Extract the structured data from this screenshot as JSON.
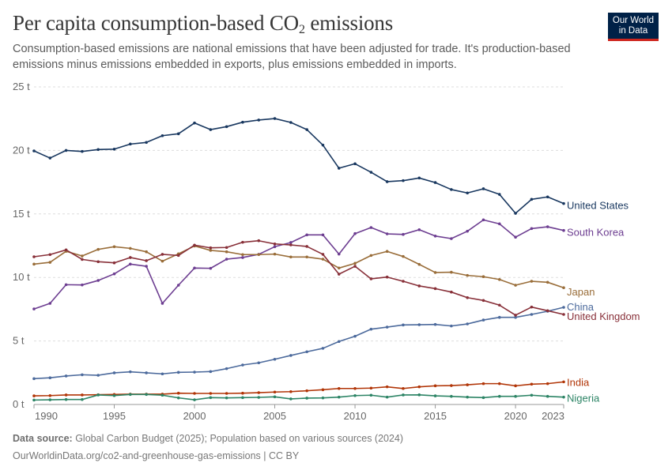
{
  "header": {
    "title": "Per capita consumption-based CO",
    "title_sub": "2",
    "title_end": " emissions",
    "subtitle": "Consumption-based emissions are national emissions that have been adjusted for trade. It's production-based emissions minus emissions embedded in exports, plus emissions embedded in imports.",
    "logo_line1": "Our World",
    "logo_line2": "in Data"
  },
  "footer": {
    "source_label": "Data source:",
    "source_text": " Global Carbon Budget (2025); Population based on various sources (2024)",
    "url_text": "OurWorldinData.org/co2-and-greenhouse-gas-emissions | CC BY"
  },
  "chart_data": {
    "type": "line",
    "title": "Per capita consumption-based CO2 emissions",
    "x": [
      1990,
      1991,
      1992,
      1993,
      1994,
      1995,
      1996,
      1997,
      1998,
      1999,
      2000,
      2001,
      2002,
      2003,
      2004,
      2005,
      2006,
      2007,
      2008,
      2009,
      2010,
      2011,
      2012,
      2013,
      2014,
      2015,
      2016,
      2017,
      2018,
      2019,
      2020,
      2021,
      2022,
      2023
    ],
    "xlim": [
      1990,
      2023
    ],
    "ylim": [
      0,
      25
    ],
    "x_ticks": [
      "1990",
      "1995",
      "2000",
      "2005",
      "2010",
      "2015",
      "2020",
      "2023"
    ],
    "x_tick_values": [
      1990,
      1995,
      2000,
      2005,
      2010,
      2015,
      2020,
      2023
    ],
    "y_ticks": [
      "0 t",
      "5 t",
      "10 t",
      "15 t",
      "20 t",
      "25 t"
    ],
    "y_tick_values": [
      0,
      5,
      10,
      15,
      20,
      25
    ],
    "grid": "horizontal dashed",
    "legend": "end-of-line labels on right",
    "series": [
      {
        "name": "United States",
        "color": "#18375f",
        "values": [
          19.96,
          19.4,
          20.0,
          19.92,
          20.07,
          20.1,
          20.5,
          20.63,
          21.16,
          21.31,
          22.16,
          21.64,
          21.87,
          22.22,
          22.39,
          22.51,
          22.2,
          21.64,
          20.42,
          18.6,
          18.95,
          18.28,
          17.54,
          17.62,
          17.83,
          17.47,
          16.92,
          16.65,
          16.98,
          16.54,
          15.05,
          16.15,
          16.34,
          15.82
        ]
      },
      {
        "name": "South Korea",
        "color": "#6d3e91",
        "values": [
          7.52,
          7.96,
          9.43,
          9.41,
          9.76,
          10.28,
          11.05,
          10.88,
          7.96,
          9.39,
          10.74,
          10.72,
          11.44,
          11.57,
          11.82,
          12.42,
          12.75,
          13.35,
          13.35,
          11.84,
          13.45,
          13.93,
          13.43,
          13.39,
          13.76,
          13.26,
          13.06,
          13.64,
          14.53,
          14.22,
          13.17,
          13.85,
          13.99,
          13.7
        ]
      },
      {
        "name": "Japan",
        "color": "#996d39",
        "values": [
          11.05,
          11.19,
          12.06,
          11.69,
          12.21,
          12.42,
          12.29,
          12.02,
          11.28,
          11.86,
          12.48,
          12.13,
          12.02,
          11.8,
          11.8,
          11.84,
          11.61,
          11.61,
          11.44,
          10.74,
          11.11,
          11.73,
          12.05,
          11.65,
          11.03,
          10.39,
          10.41,
          10.16,
          10.06,
          9.84,
          9.39,
          9.7,
          9.62,
          9.19
        ]
      },
      {
        "name": "China",
        "color": "#4c6a9c",
        "values": [
          2.03,
          2.1,
          2.24,
          2.34,
          2.3,
          2.49,
          2.57,
          2.49,
          2.41,
          2.53,
          2.55,
          2.59,
          2.82,
          3.11,
          3.28,
          3.56,
          3.86,
          4.15,
          4.42,
          4.96,
          5.37,
          5.93,
          6.09,
          6.26,
          6.28,
          6.3,
          6.18,
          6.34,
          6.65,
          6.86,
          6.86,
          7.09,
          7.34,
          7.65
        ]
      },
      {
        "name": "United Kingdom",
        "color": "#883039",
        "values": [
          11.63,
          11.8,
          12.17,
          11.42,
          11.24,
          11.15,
          11.57,
          11.32,
          11.82,
          11.73,
          12.54,
          12.33,
          12.36,
          12.77,
          12.89,
          12.64,
          12.56,
          12.44,
          11.82,
          10.26,
          10.88,
          9.89,
          10.03,
          9.7,
          9.33,
          9.12,
          8.85,
          8.41,
          8.19,
          7.82,
          7.03,
          7.67,
          7.38,
          7.09
        ]
      },
      {
        "name": "India",
        "color": "#b13507",
        "values": [
          0.68,
          0.7,
          0.75,
          0.75,
          0.77,
          0.79,
          0.81,
          0.81,
          0.81,
          0.89,
          0.87,
          0.87,
          0.87,
          0.89,
          0.93,
          0.98,
          1.01,
          1.08,
          1.16,
          1.26,
          1.26,
          1.29,
          1.39,
          1.26,
          1.39,
          1.47,
          1.49,
          1.55,
          1.64,
          1.64,
          1.47,
          1.6,
          1.64,
          1.78
        ]
      },
      {
        "name": "Nigeria",
        "color": "#2c8465",
        "values": [
          0.35,
          0.37,
          0.39,
          0.39,
          0.75,
          0.7,
          0.79,
          0.79,
          0.73,
          0.52,
          0.37,
          0.54,
          0.52,
          0.54,
          0.56,
          0.6,
          0.44,
          0.5,
          0.52,
          0.58,
          0.7,
          0.73,
          0.58,
          0.75,
          0.76,
          0.68,
          0.64,
          0.58,
          0.54,
          0.64,
          0.64,
          0.73,
          0.64,
          0.58
        ]
      }
    ]
  }
}
